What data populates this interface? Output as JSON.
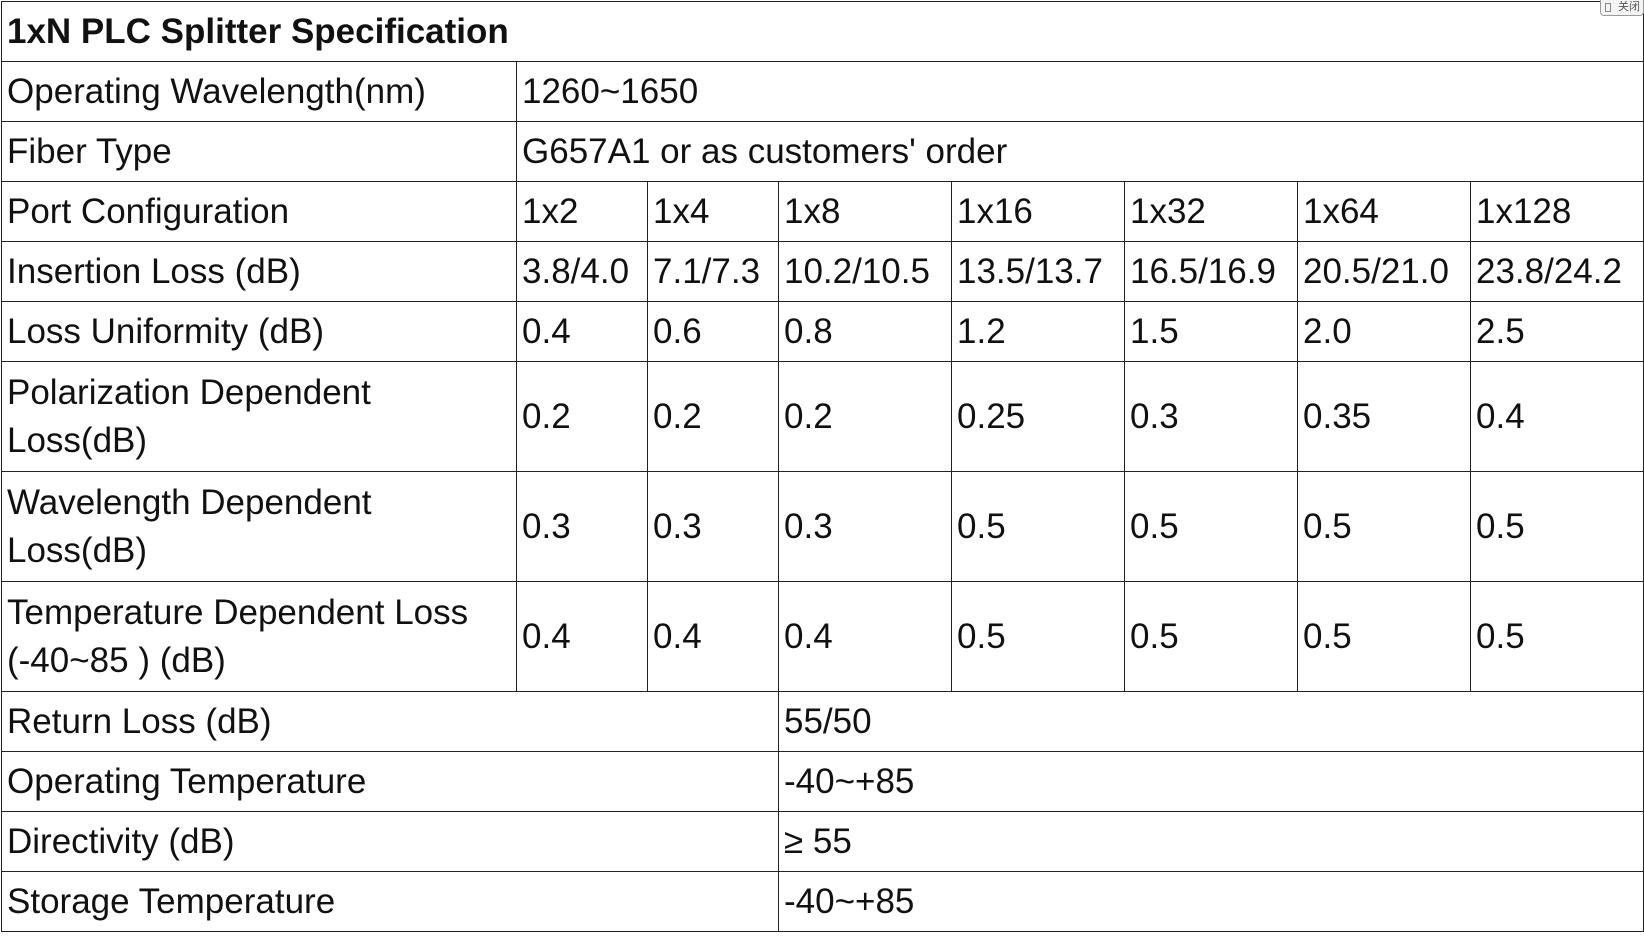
{
  "title": "1xN PLC Splitter Specification",
  "corner_button": {
    "label": "关闭"
  },
  "rows": {
    "wavelength": {
      "label": "Operating Wavelength(nm)",
      "value": "1260~1650"
    },
    "fiber": {
      "label": "Fiber Type",
      "value": "G657A1 or as customers' order"
    },
    "ports": {
      "label": "Port Configuration",
      "values": [
        "1x2",
        "1x4",
        "1x8",
        "1x16",
        "1x32",
        "1x64",
        "1x128"
      ]
    },
    "insertion": {
      "label": "Insertion Loss (dB)",
      "values": [
        "3.8/4.0",
        "7.1/7.3",
        "10.2/10.5",
        "13.5/13.7",
        "16.5/16.9",
        "20.5/21.0",
        "23.8/24.2"
      ]
    },
    "uniformity": {
      "label": "Loss Uniformity (dB)",
      "values": [
        "0.4",
        "0.6",
        "0.8",
        "1.2",
        "1.5",
        "2.0",
        "2.5"
      ]
    },
    "pdl": {
      "label": "Polarization Dependent Loss(dB)",
      "values": [
        "0.2",
        "0.2",
        "0.2",
        "0.25",
        "0.3",
        "0.35",
        "0.4"
      ]
    },
    "wdl": {
      "label": "Wavelength Dependent Loss(dB)",
      "values": [
        "0.3",
        "0.3",
        "0.3",
        "0.5",
        "0.5",
        "0.5",
        "0.5"
      ]
    },
    "tdl": {
      "label": "Temperature Dependent Loss (-40~85 ) (dB)",
      "values": [
        "0.4",
        "0.4",
        "0.4",
        "0.5",
        "0.5",
        "0.5",
        "0.5"
      ]
    },
    "return_loss": {
      "label": "Return Loss (dB)",
      "value": "55/50"
    },
    "op_temp": {
      "label": "Operating Temperature",
      "value": "-40~+85"
    },
    "directivity": {
      "label": "Directivity (dB)",
      "value": "≥ 55"
    },
    "storage_temp": {
      "label": "Storage Temperature",
      "value": "-40~+85"
    }
  }
}
